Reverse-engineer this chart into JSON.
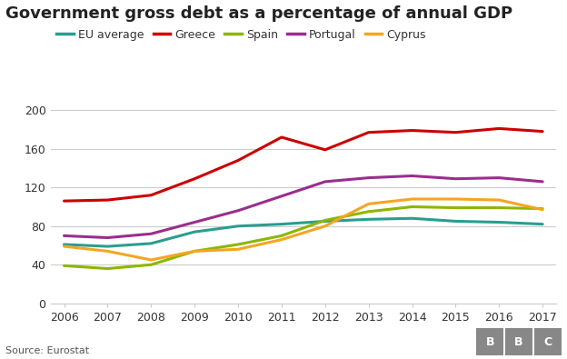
{
  "title": "Government gross debt as a percentage of annual GDP",
  "years": [
    2006,
    2007,
    2008,
    2009,
    2010,
    2011,
    2012,
    2013,
    2014,
    2015,
    2016,
    2017
  ],
  "series": {
    "EU average": {
      "color": "#2a9d8f",
      "values": [
        61,
        59,
        62,
        74,
        80,
        82,
        85,
        87,
        88,
        85,
        84,
        82
      ]
    },
    "Greece": {
      "color": "#cc0000",
      "values": [
        106,
        107,
        112,
        129,
        148,
        172,
        159,
        177,
        179,
        177,
        181,
        178
      ]
    },
    "Spain": {
      "color": "#8db600",
      "values": [
        39,
        36,
        40,
        54,
        61,
        70,
        86,
        95,
        100,
        99,
        99,
        98
      ]
    },
    "Portugal": {
      "color": "#9b2d8e",
      "values": [
        70,
        68,
        72,
        84,
        96,
        111,
        126,
        130,
        132,
        129,
        130,
        126
      ]
    },
    "Cyprus": {
      "color": "#f4a522",
      "values": [
        59,
        54,
        45,
        54,
        56,
        66,
        80,
        103,
        108,
        108,
        107,
        97
      ]
    }
  },
  "ylim": [
    0,
    210
  ],
  "yticks": [
    0,
    40,
    80,
    120,
    160,
    200
  ],
  "source": "Source: Eurostat",
  "background_color": "#ffffff",
  "grid_color": "#cccccc",
  "linewidth": 2.2,
  "title_fontsize": 13,
  "legend_fontsize": 9,
  "tick_fontsize": 9,
  "bbc_bg": "#bbbbbb",
  "bbc_text": "#222222"
}
